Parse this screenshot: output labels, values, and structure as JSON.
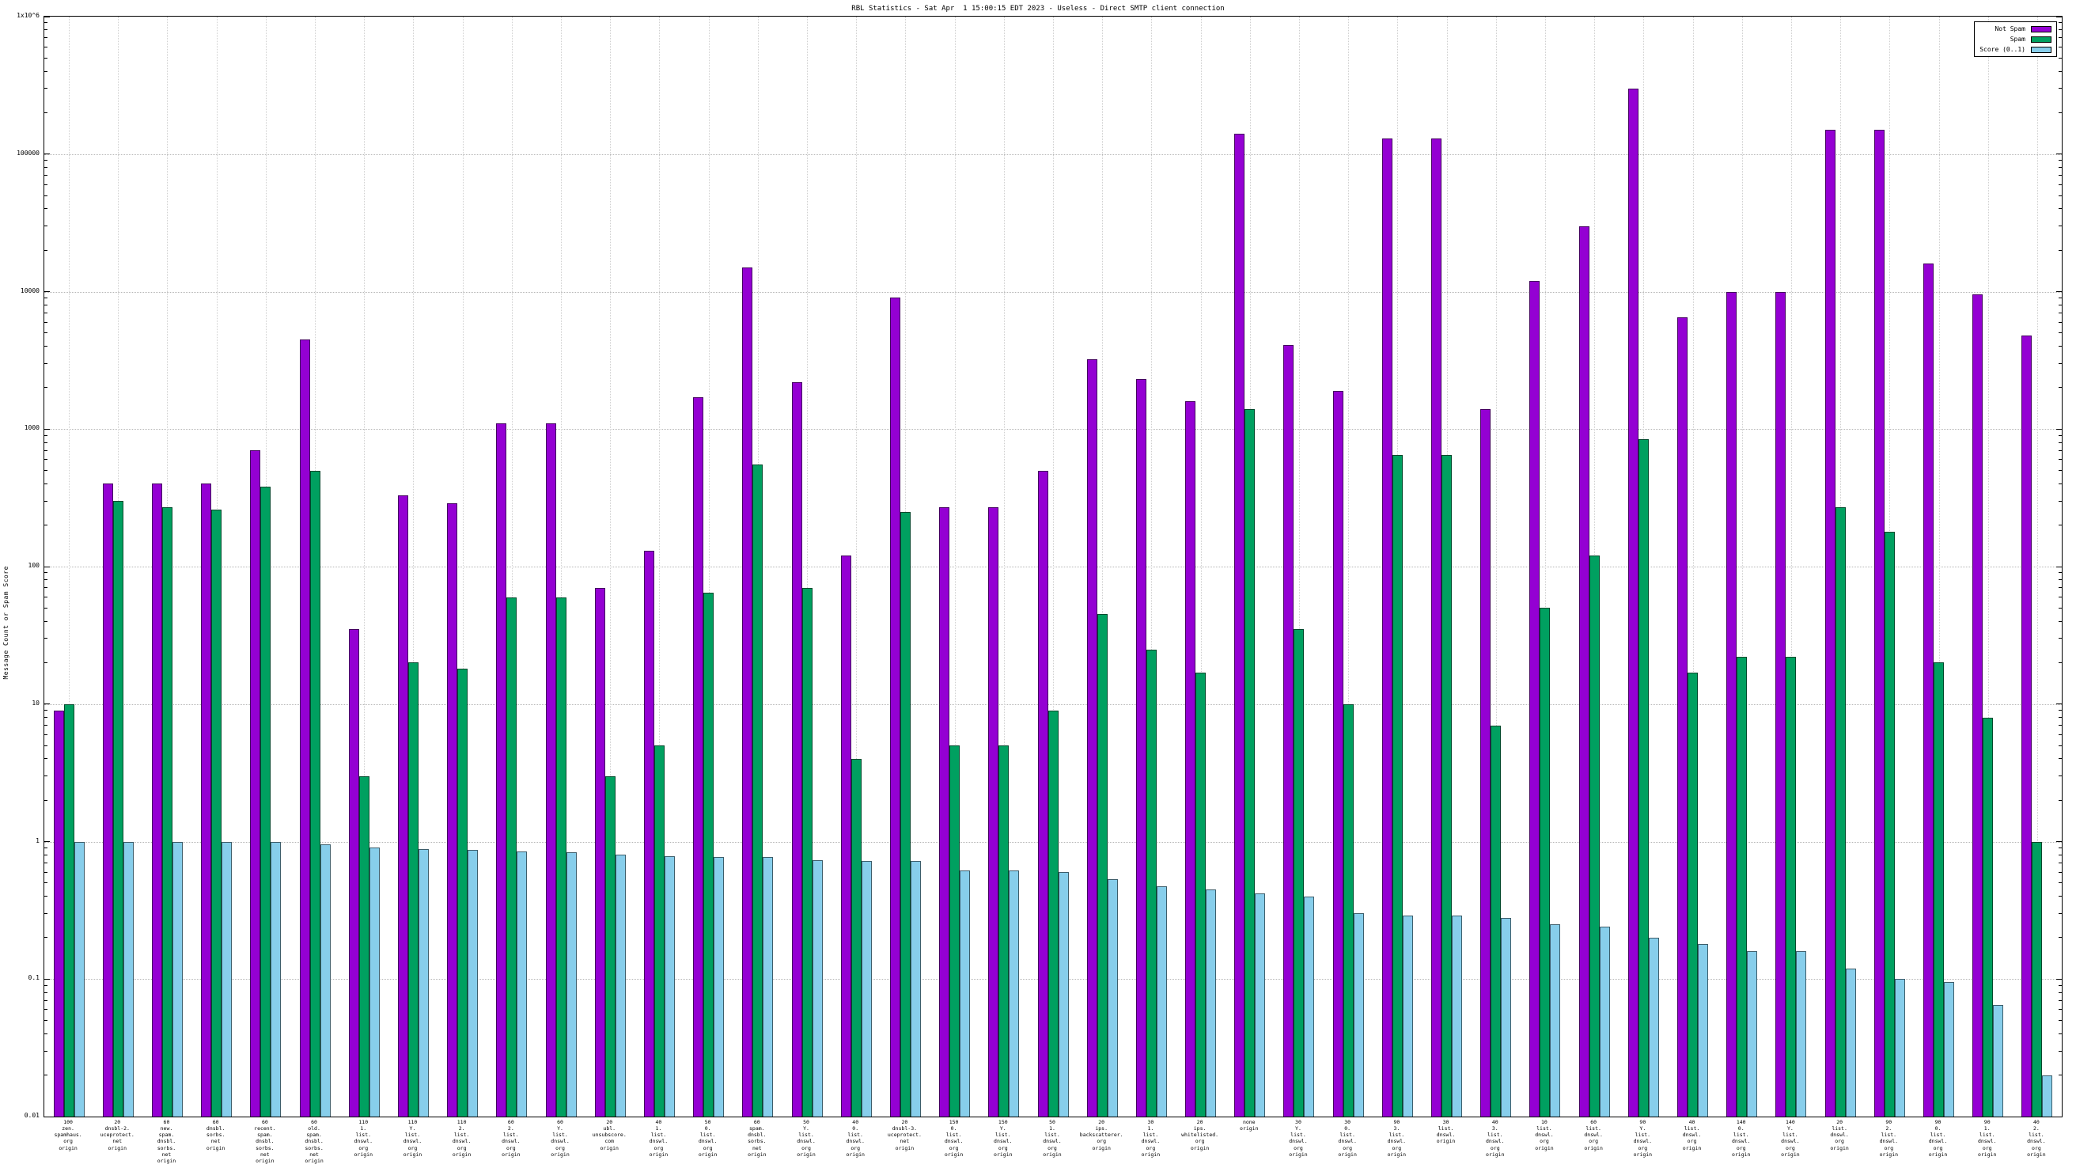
{
  "chart_data": {
    "type": "bar",
    "title": "RBL Statistics - Sat Apr  1 15:00:15 EDT 2023 - Useless - Direct SMTP client connection",
    "ylabel": "Message Count or Spam Score",
    "xlabel": "",
    "scale": "log",
    "ylim": [
      0.01,
      1000000
    ],
    "grid": true,
    "legend_position": "top-right",
    "yticks": [
      {
        "label": "0.01",
        "value": 0.01
      },
      {
        "label": "0.1",
        "value": 0.1
      },
      {
        "label": "1",
        "value": 1
      },
      {
        "label": "10",
        "value": 10
      },
      {
        "label": "100",
        "value": 100
      },
      {
        "label": "1000",
        "value": 1000
      },
      {
        "label": "10000",
        "value": 10000
      },
      {
        "label": "100000",
        "value": 100000
      },
      {
        "label": "1x10^6",
        "value": 1000000
      }
    ],
    "categories": [
      "100\nzen.\nspamhaus.\norg\norigin",
      "20\ndnsbl-2.\nuceprotect.\nnet\norigin",
      "60\nnew.\nspam.\ndnsbl.\nsorbs.\nnet\norigin",
      "60\ndnsbl.\nsorbs.\nnet\norigin",
      "60\nrecent.\nspam.\ndnsbl.\nsorbs.\nnet\norigin",
      "60\nold.\nspam.\ndnsbl.\nsorbs.\nnet\norigin",
      "110\n1.\nlist.\ndnswl.\norg\norigin",
      "110\nY.\nlist.\ndnswl.\norg\norigin",
      "110\n2.\nlist.\ndnswl.\norg\norigin",
      "60\n2.\nlist.\ndnswl.\norg\norigin",
      "60\nY.\nlist.\ndnswl.\norg\norigin",
      "20\nubl.\nunsubscore.\ncom\norigin",
      "40\n1.\nlist.\ndnswl.\norg\norigin",
      "50\n0.\nlist.\ndnswl.\norg\norigin",
      "60\nspam.\ndnsbl.\nsorbs.\nnet\norigin",
      "50\nY.\nlist.\ndnswl.\norg\norigin",
      "40\n0.\nlist.\ndnswl.\norg\norigin",
      "20\ndnsbl-3.\nuceprotect.\nnet\norigin",
      "150\n0.\nlist.\ndnswl.\norg\norigin",
      "150\nY.\nlist.\ndnswl.\norg\norigin",
      "50\n1.\nlist.\ndnswl.\norg\norigin",
      "20\nips.\nbackscatterer.\norg\norigin",
      "30\n1.\nlist.\ndnswl.\norg\norigin",
      "20\nips.\nwhitelisted.\norg\norigin",
      "none\norigin",
      "30\nY.\nlist.\ndnswl.\norg\norigin",
      "30\n0.\nlist.\ndnswl.\norg\norigin",
      "90\n3.\nlist.\ndnswl.\norg\norigin",
      "30\nlist.\ndnswl.\norigin",
      "40\n3.\nlist.\ndnswl.\norg\norigin",
      "10\nlist.\ndnswl.\norg\norigin",
      "60\nlist.\ndnswl.\norg\norigin",
      "90\nY.\nlist.\ndnswl.\norg\norigin",
      "40\nlist.\ndnswl.\norg\norigin",
      "140\n0.\nlist.\ndnswl.\norg\norigin",
      "140\nY.\nlist.\ndnswl.\norg\norigin",
      "20\nlist.\ndnswl.\norg\norigin",
      "90\n2.\nlist.\ndnswl.\norg\norigin",
      "90\n0.\nlist.\ndnswl.\norg\norigin",
      "90\n1.\nlist.\ndnswl.\norg\norigin",
      "40\n2.\nlist.\ndnswl.\norg\norigin"
    ],
    "series": [
      {
        "name": "Not Spam",
        "color": "#9400d3",
        "values": [
          9,
          400,
          400,
          400,
          700,
          4500,
          35,
          330,
          290,
          1100,
          1100,
          70,
          130,
          1700,
          15000,
          2200,
          120,
          9000,
          270,
          270,
          500,
          3200,
          2300,
          1600,
          140000,
          4100,
          1900,
          130000,
          130000,
          1400,
          12000,
          30000,
          300000,
          6500,
          10000,
          10000,
          150000,
          150000,
          16000,
          9500,
          4800
        ]
      },
      {
        "name": "Spam",
        "color": "#00a060",
        "values": [
          10,
          300,
          270,
          260,
          380,
          500,
          3,
          20,
          18,
          60,
          60,
          3,
          5,
          65,
          550,
          70,
          4,
          250,
          5,
          5,
          9,
          45,
          25,
          17,
          1400,
          35,
          10,
          650,
          650,
          7,
          50,
          120,
          850,
          17,
          22,
          22,
          270,
          180,
          20,
          8,
          1
        ]
      },
      {
        "name": "Score (0..1)",
        "color": "#87ceeb",
        "values": [
          1.0,
          1.0,
          1.0,
          1.0,
          1.0,
          0.95,
          0.9,
          0.88,
          0.87,
          0.85,
          0.84,
          0.8,
          0.78,
          0.77,
          0.77,
          0.73,
          0.72,
          0.72,
          0.62,
          0.62,
          0.6,
          0.53,
          0.47,
          0.45,
          0.42,
          0.4,
          0.3,
          0.29,
          0.29,
          0.28,
          0.25,
          0.24,
          0.2,
          0.18,
          0.16,
          0.16,
          0.12,
          0.1,
          0.095,
          0.065,
          0.02
        ]
      }
    ]
  }
}
